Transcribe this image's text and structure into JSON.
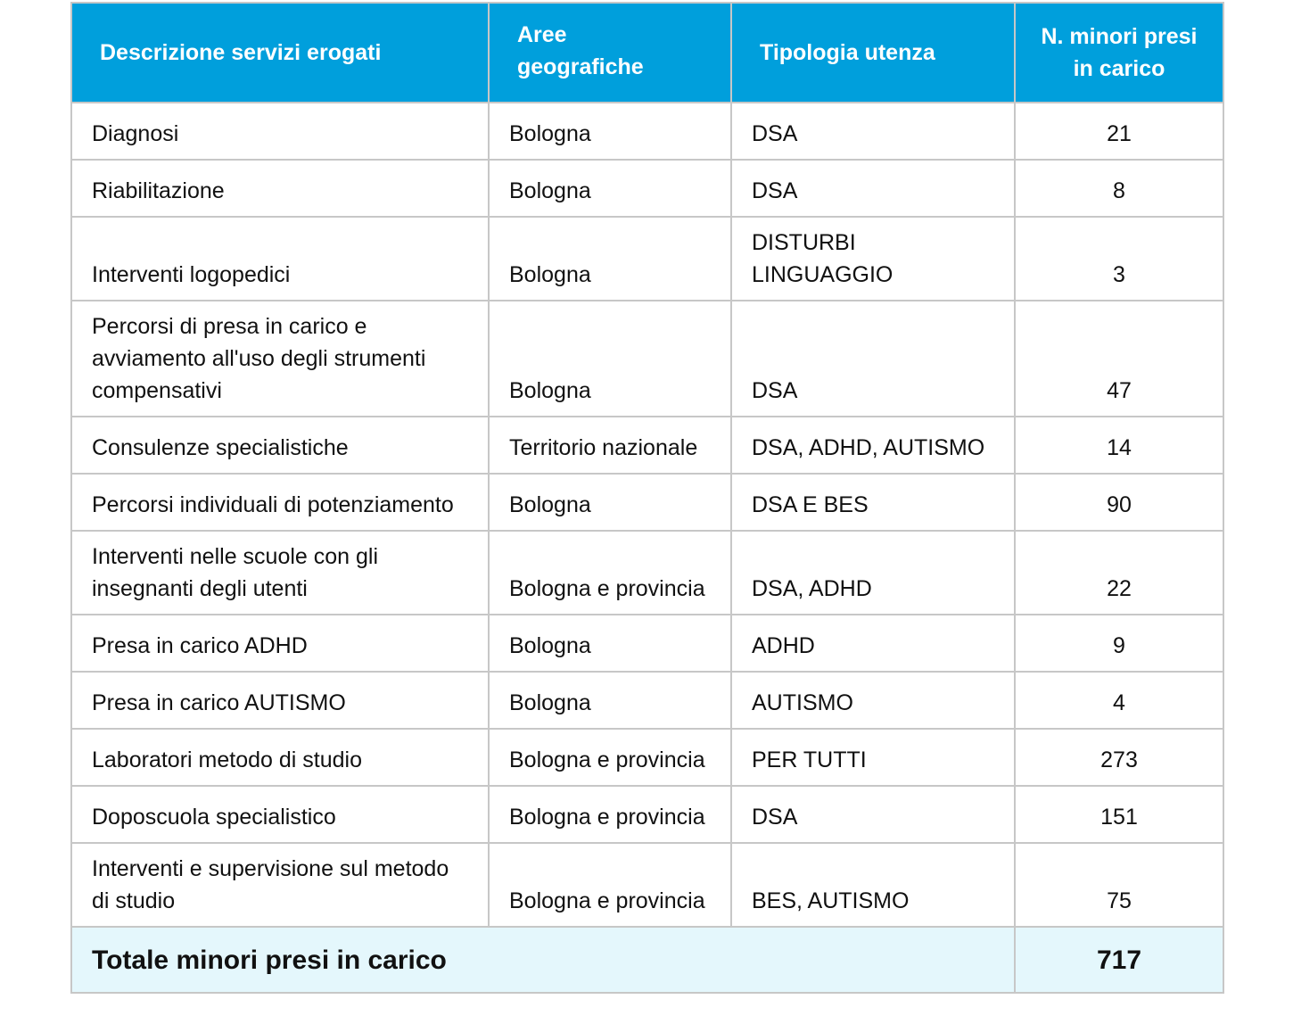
{
  "table": {
    "headers": [
      "Descrizione servizi erogati",
      "Aree geografiche",
      "Tipologia utenza",
      "N. minori presi in carico"
    ],
    "rows": [
      {
        "service": "Diagnosi",
        "area": "Bologna",
        "type": "DSA",
        "count": "21"
      },
      {
        "service": "Riabilitazione",
        "area": "Bologna",
        "type": "DSA",
        "count": "8"
      },
      {
        "service": "Interventi logopedici",
        "area": "Bologna",
        "type": "DISTURBI LINGUAGGIO",
        "count": "3"
      },
      {
        "service": "Percorsi di presa in carico e avviamento all'uso degli strumenti compensativi",
        "area": "Bologna",
        "type": "DSA",
        "count": "47"
      },
      {
        "service": "Consulenze specialistiche",
        "area": "Territorio nazionale",
        "type": "DSA, ADHD, AUTISMO",
        "count": "14"
      },
      {
        "service": "Percorsi individuali di potenziamento",
        "area": "Bologna",
        "type": "DSA E BES",
        "count": "90"
      },
      {
        "service": "Interventi nelle scuole con gli insegnanti degli utenti",
        "area": "Bologna e provincia",
        "type": "DSA, ADHD",
        "count": "22"
      },
      {
        "service": "Presa in carico ADHD",
        "area": "Bologna",
        "type": "ADHD",
        "count": "9"
      },
      {
        "service": "Presa in carico AUTISMO",
        "area": "Bologna",
        "type": "AUTISMO",
        "count": "4"
      },
      {
        "service": "Laboratori metodo di studio",
        "area": "Bologna e provincia",
        "type": "PER TUTTI",
        "count": "273"
      },
      {
        "service": "Doposcuola specialistico",
        "area": "Bologna e provincia",
        "type": "DSA",
        "count": "151"
      },
      {
        "service": "Interventi e supervisione sul metodo di studio",
        "area": "Bologna e provincia",
        "type": "BES, AUTISMO",
        "count": "75"
      }
    ],
    "total": {
      "label": "Totale minori presi in carico",
      "value": "717"
    }
  },
  "colors": {
    "header_bg": "#009fdc",
    "header_text": "#ffffff",
    "total_bg": "#e4f7fc",
    "grid": "#c7c7c7"
  }
}
